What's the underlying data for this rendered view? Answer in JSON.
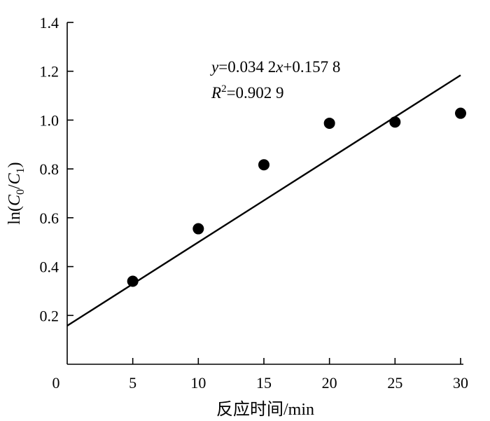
{
  "chart_data": {
    "type": "scatter",
    "xlabel": "反应时间/min",
    "ylabel_parts": {
      "prefix": "ln(",
      "c": "C",
      "sub0": "0",
      "slash": "/",
      "sub1": "1",
      "suffix": ")"
    },
    "xlim": [
      0,
      30
    ],
    "ylim": [
      0,
      1.4
    ],
    "x_ticks": [
      "0",
      "5",
      "10",
      "15",
      "20",
      "25",
      "30"
    ],
    "y_ticks": [
      "0.2",
      "0.4",
      "0.6",
      "0.8",
      "1.0",
      "1.2",
      "1.4"
    ],
    "grid": false,
    "points": [
      {
        "x": 5,
        "y": 0.34
      },
      {
        "x": 10,
        "y": 0.555
      },
      {
        "x": 15,
        "y": 0.817
      },
      {
        "x": 20,
        "y": 0.987
      },
      {
        "x": 25,
        "y": 0.992
      },
      {
        "x": 30,
        "y": 1.028
      }
    ],
    "fit": {
      "slope": 0.0342,
      "intercept": 0.1578
    },
    "annotation": {
      "eq_y": "y",
      "eq_mid": "=0.034 2",
      "eq_x": "x",
      "eq_end": "+0.157 8",
      "r_letter": "R",
      "r_sup": "2",
      "r_value": "=0.902 9"
    }
  }
}
